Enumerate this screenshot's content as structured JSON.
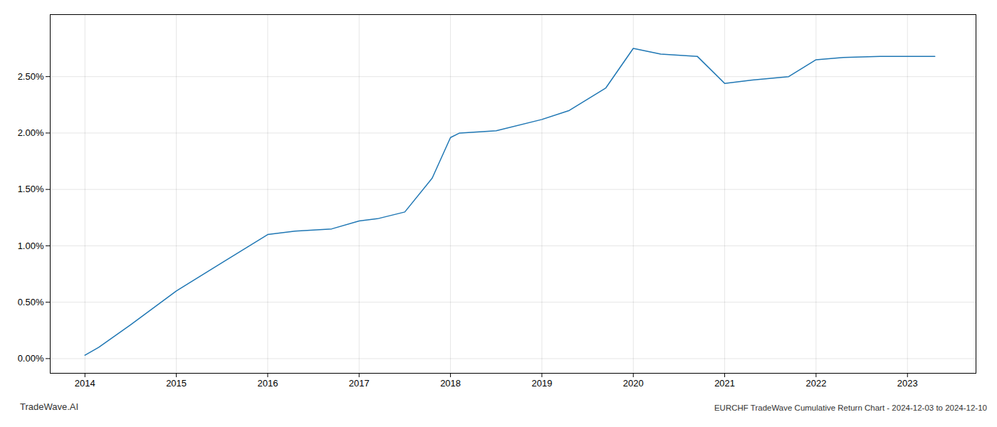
{
  "chart_data": {
    "type": "line",
    "x": [
      2014.0,
      2014.15,
      2014.5,
      2015.0,
      2015.5,
      2016.0,
      2016.3,
      2016.7,
      2017.0,
      2017.2,
      2017.5,
      2017.8,
      2018.0,
      2018.1,
      2018.5,
      2019.0,
      2019.3,
      2019.7,
      2020.0,
      2020.3,
      2020.7,
      2021.0,
      2021.3,
      2021.7,
      2022.0,
      2022.3,
      2022.7,
      2023.0,
      2023.3
    ],
    "values": [
      0.0003,
      0.001,
      0.003,
      0.006,
      0.0085,
      0.011,
      0.0113,
      0.0115,
      0.0122,
      0.0124,
      0.013,
      0.016,
      0.0196,
      0.02,
      0.0202,
      0.0212,
      0.022,
      0.024,
      0.0275,
      0.027,
      0.0268,
      0.0244,
      0.0247,
      0.025,
      0.0265,
      0.0267,
      0.0268,
      0.0268,
      0.0268
    ],
    "color": "#1f77b4",
    "xlim": [
      2013.62,
      2023.75
    ],
    "xticks": [
      2014,
      2015,
      2016,
      2017,
      2018,
      2019,
      2020,
      2021,
      2022,
      2023
    ],
    "ylim": [
      -0.0013,
      0.0305
    ],
    "yticks": [
      {
        "value": 0.0,
        "label": "0.00%"
      },
      {
        "value": 0.005,
        "label": "0.50%"
      },
      {
        "value": 0.01,
        "label": "1.00%"
      },
      {
        "value": 0.015,
        "label": "1.50%"
      },
      {
        "value": 0.02,
        "label": "2.00%"
      },
      {
        "value": 0.025,
        "label": "2.50%"
      }
    ],
    "grid": true,
    "annotations": [
      "TradeWave.AI",
      "EURCHF TradeWave Cumulative Return Chart - 2024-12-03 to 2024-12-10"
    ]
  }
}
